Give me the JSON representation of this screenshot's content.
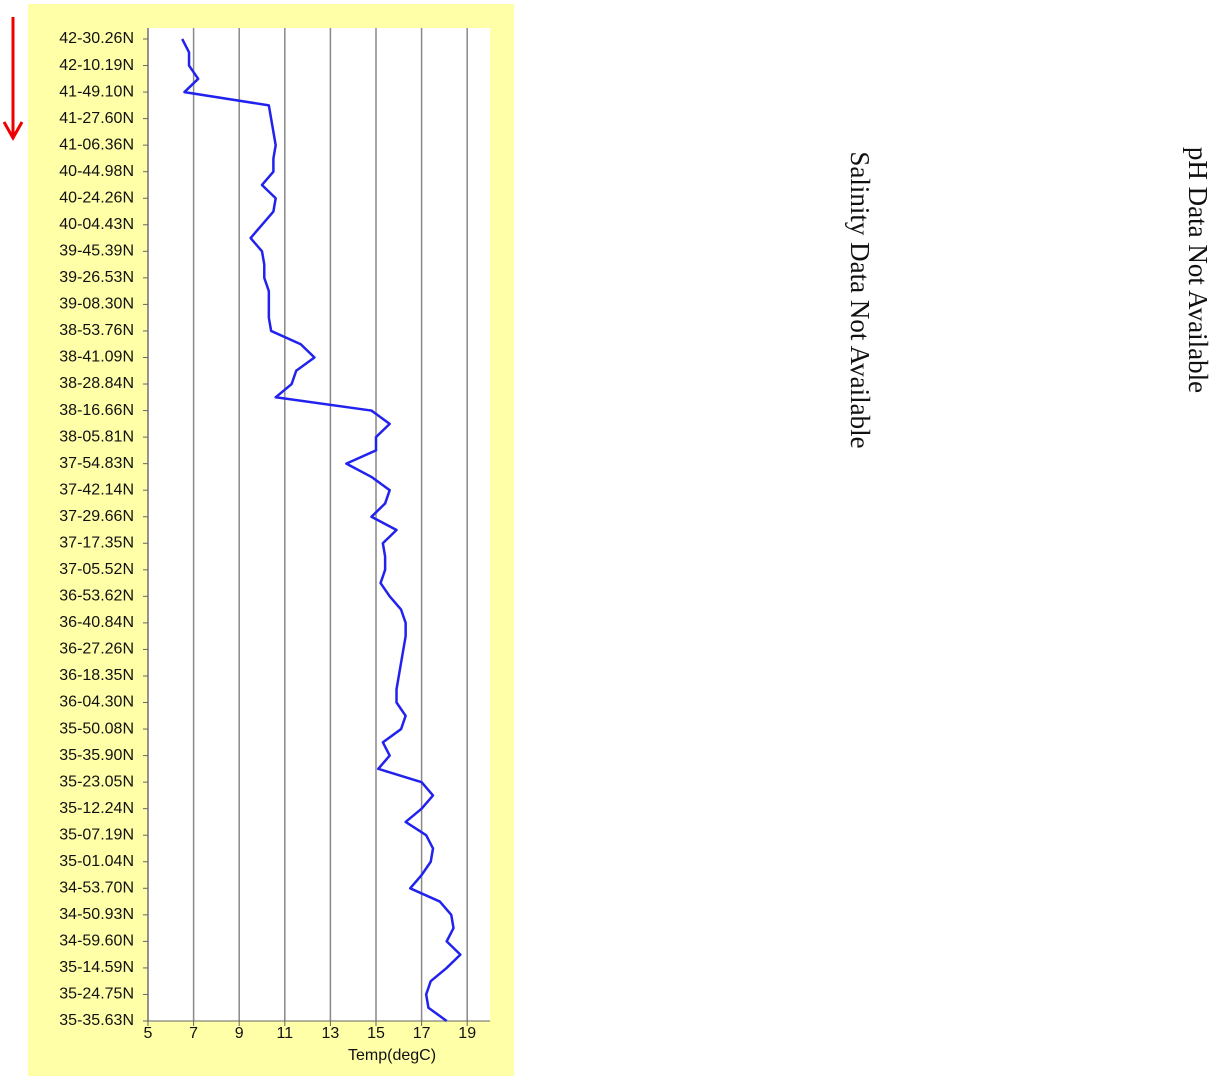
{
  "chart_data": {
    "type": "line",
    "orientation": "vertical",
    "x_label": "Temp(degC)",
    "categories": [
      "42-30.26N",
      null,
      "42-10.19N",
      null,
      "41-49.10N",
      null,
      "41-27.60N",
      null,
      "41-06.36N",
      null,
      "40-44.98N",
      null,
      "40-24.26N",
      null,
      "40-04.43N",
      null,
      "39-45.39N",
      null,
      "39-26.53N",
      null,
      "39-08.30N",
      null,
      "38-53.76N",
      null,
      "38-41.09N",
      null,
      "38-28.84N",
      null,
      "38-16.66N",
      null,
      "38-05.81N",
      null,
      "37-54.83N",
      null,
      "37-42.14N",
      null,
      "37-29.66N",
      null,
      "37-17.35N",
      null,
      "37-05.52N",
      null,
      "36-53.62N",
      null,
      "36-40.84N",
      null,
      "36-27.26N",
      null,
      "36-18.35N",
      null,
      "36-04.30N",
      null,
      "35-50.08N",
      null,
      "35-35.90N",
      null,
      "35-23.05N",
      null,
      "35-12.24N",
      null,
      "35-07.19N",
      null,
      "35-01.04N",
      null,
      "34-53.70N",
      null,
      "34-50.93N",
      null,
      "34-59.60N",
      null,
      "35-14.59N",
      null,
      "35-24.75N",
      null,
      "35-35.63N"
    ],
    "series": [
      {
        "color": "#2222ee",
        "values": [
          6.5,
          6.8,
          6.8,
          7.2,
          6.6,
          10.3,
          10.4,
          10.5,
          10.6,
          10.5,
          10.5,
          10.0,
          10.6,
          10.5,
          10.0,
          9.5,
          10.0,
          10.1,
          10.1,
          10.3,
          10.3,
          10.3,
          10.4,
          11.7,
          12.3,
          11.5,
          11.3,
          10.6,
          14.8,
          15.6,
          15.0,
          15.0,
          13.7,
          14.8,
          15.6,
          15.4,
          14.8,
          15.9,
          15.3,
          15.4,
          15.4,
          15.2,
          15.6,
          16.1,
          16.3,
          16.3,
          16.2,
          16.1,
          16.0,
          15.9,
          15.9,
          16.3,
          16.1,
          15.3,
          15.6,
          15.1,
          17.0,
          17.5,
          17.0,
          16.3,
          17.2,
          17.5,
          17.4,
          17.0,
          16.5,
          17.8,
          18.3,
          18.4,
          18.1,
          18.7,
          18.1,
          17.4,
          17.2,
          17.3,
          18.1
        ]
      }
    ],
    "xlim": [
      5,
      20
    ],
    "xticks": [
      5,
      7,
      9,
      11,
      13,
      15,
      17,
      19
    ],
    "grid": true,
    "notes": [
      "Salinity Data Not Available",
      "pH Data Not Available"
    ]
  }
}
